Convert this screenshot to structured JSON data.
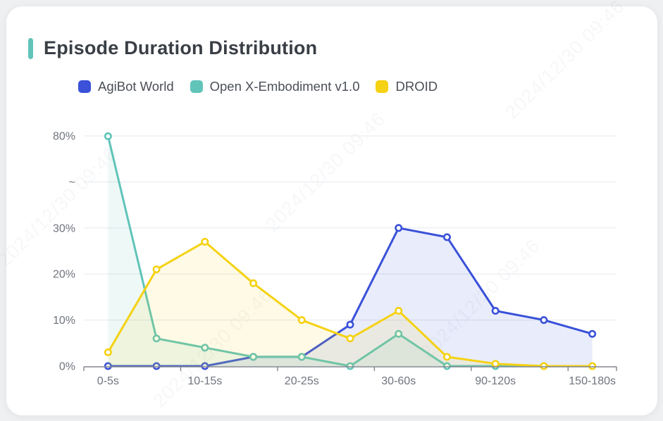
{
  "page": {
    "background_color": "#eef0f2",
    "card_background": "#ffffff"
  },
  "header": {
    "title": "Episode Duration Distribution",
    "accent_color": "#62c3b9"
  },
  "legend": [
    {
      "label": "AgiBot World",
      "color": "#3a51d8"
    },
    {
      "label": "Open X-Embodiment v1.0",
      "color": "#60c4b9"
    },
    {
      "label": "DROID",
      "color": "#f5d213"
    }
  ],
  "watermark": {
    "text": "2024/12/30 09:46"
  },
  "chart_data": {
    "type": "line",
    "categories": [
      "0-5s",
      "",
      "10-15s",
      "",
      "20-25s",
      "",
      "30-60s",
      "",
      "90-120s",
      "",
      "150-180s"
    ],
    "y_tick_labels": [
      "0%",
      "10%",
      "20%",
      "30%",
      "~",
      "80%"
    ],
    "y_axis_break": {
      "linear_max": 40,
      "break_label": "~",
      "top_value": 80
    },
    "ylim": [
      0,
      80
    ],
    "grid": true,
    "legend_position": "top",
    "area_fill": true,
    "marker": "hollow-circle",
    "series": [
      {
        "name": "AgiBot World",
        "color": "#3a51d8",
        "values": [
          0,
          0,
          0,
          2,
          2,
          9,
          30,
          28,
          12,
          10,
          7
        ]
      },
      {
        "name": "Open X-Embodiment v1.0",
        "color": "#60c4b9",
        "values": [
          79.7,
          6,
          4,
          2,
          2,
          0,
          7,
          0,
          0,
          0,
          0
        ]
      },
      {
        "name": "DROID",
        "color": "#f5d213",
        "values": [
          3,
          21,
          27,
          18,
          10,
          6,
          12,
          2,
          0.5,
          0,
          0
        ]
      }
    ],
    "colors": {
      "grid_line": "#e4e8ee",
      "axis_line": "#81868f",
      "axis_label": "#6f747d"
    }
  }
}
